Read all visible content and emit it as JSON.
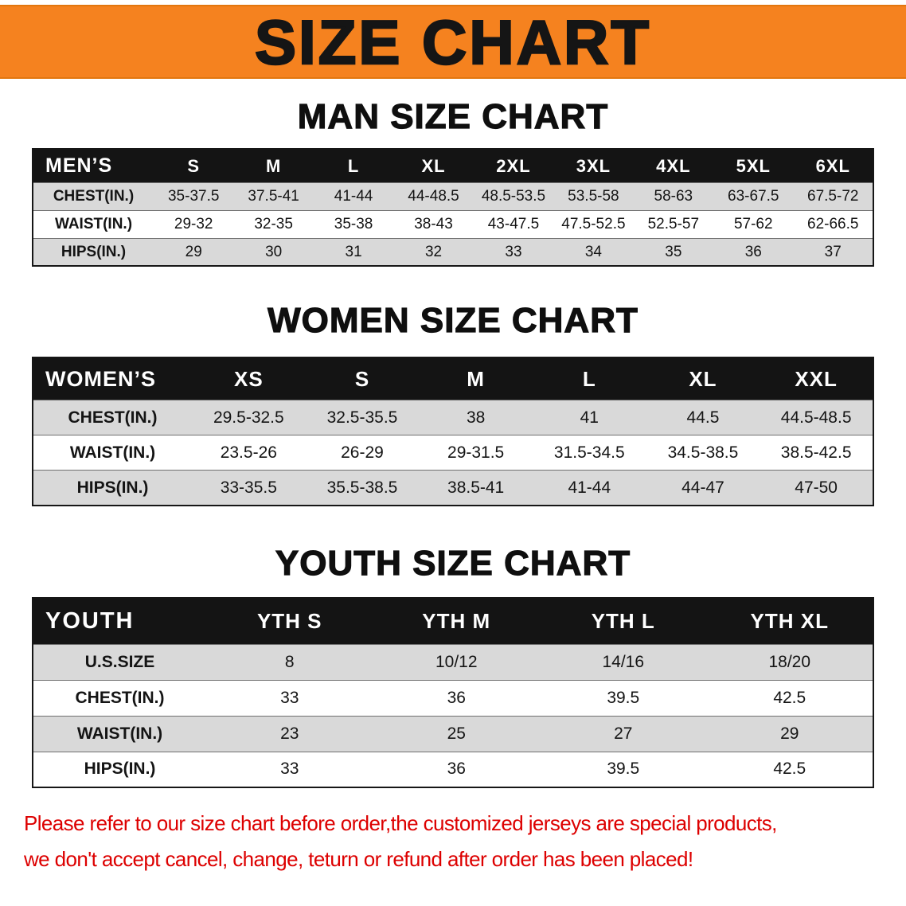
{
  "banner": {
    "title": "SIZE CHART"
  },
  "colors": {
    "banner_bg": "#f5821f",
    "header_bg": "#141414",
    "row_alt": "#d9d9d9",
    "disclaimer_red": "#dd0000"
  },
  "sections": [
    {
      "heading": "MAN SIZE CHART",
      "header": [
        "MEN’S",
        "S",
        "M",
        "L",
        "XL",
        "2XL",
        "3XL",
        "4XL",
        "5XL",
        "6XL"
      ],
      "rows": [
        [
          "CHEST(IN.)",
          "35-37.5",
          "37.5-41",
          "41-44",
          "44-48.5",
          "48.5-53.5",
          "53.5-58",
          "58-63",
          "63-67.5",
          "67.5-72"
        ],
        [
          "WAIST(IN.)",
          "29-32",
          "32-35",
          "35-38",
          "38-43",
          "43-47.5",
          "47.5-52.5",
          "52.5-57",
          "57-62",
          "62-66.5"
        ],
        [
          "HIPS(IN.)",
          "29",
          "30",
          "31",
          "32",
          "33",
          "34",
          "35",
          "36",
          "37"
        ]
      ]
    },
    {
      "heading": "WOMEN SIZE CHART",
      "header": [
        "WOMEN’S",
        "XS",
        "S",
        "M",
        "L",
        "XL",
        "XXL"
      ],
      "rows": [
        [
          "CHEST(IN.)",
          "29.5-32.5",
          "32.5-35.5",
          "38",
          "41",
          "44.5",
          "44.5-48.5"
        ],
        [
          "WAIST(IN.)",
          "23.5-26",
          "26-29",
          "29-31.5",
          "31.5-34.5",
          "34.5-38.5",
          "38.5-42.5"
        ],
        [
          "HIPS(IN.)",
          "33-35.5",
          "35.5-38.5",
          "38.5-41",
          "41-44",
          "44-47",
          "47-50"
        ]
      ]
    },
    {
      "heading": "YOUTH SIZE CHART",
      "header": [
        "YOUTH",
        "YTH S",
        "YTH M",
        "YTH L",
        "YTH XL"
      ],
      "rows": [
        [
          "U.S.SIZE",
          "8",
          "10/12",
          "14/16",
          "18/20"
        ],
        [
          "CHEST(IN.)",
          "33",
          "36",
          "39.5",
          "42.5"
        ],
        [
          "WAIST(IN.)",
          "23",
          "25",
          "27",
          "29"
        ],
        [
          "HIPS(IN.)",
          "33",
          "36",
          "39.5",
          "42.5"
        ]
      ]
    }
  ],
  "disclaimer": {
    "line1": "Please refer to our size chart before order,the customized jerseys are special products,",
    "line2": "we don't accept cancel, change, teturn or refund after order has been placed!"
  }
}
